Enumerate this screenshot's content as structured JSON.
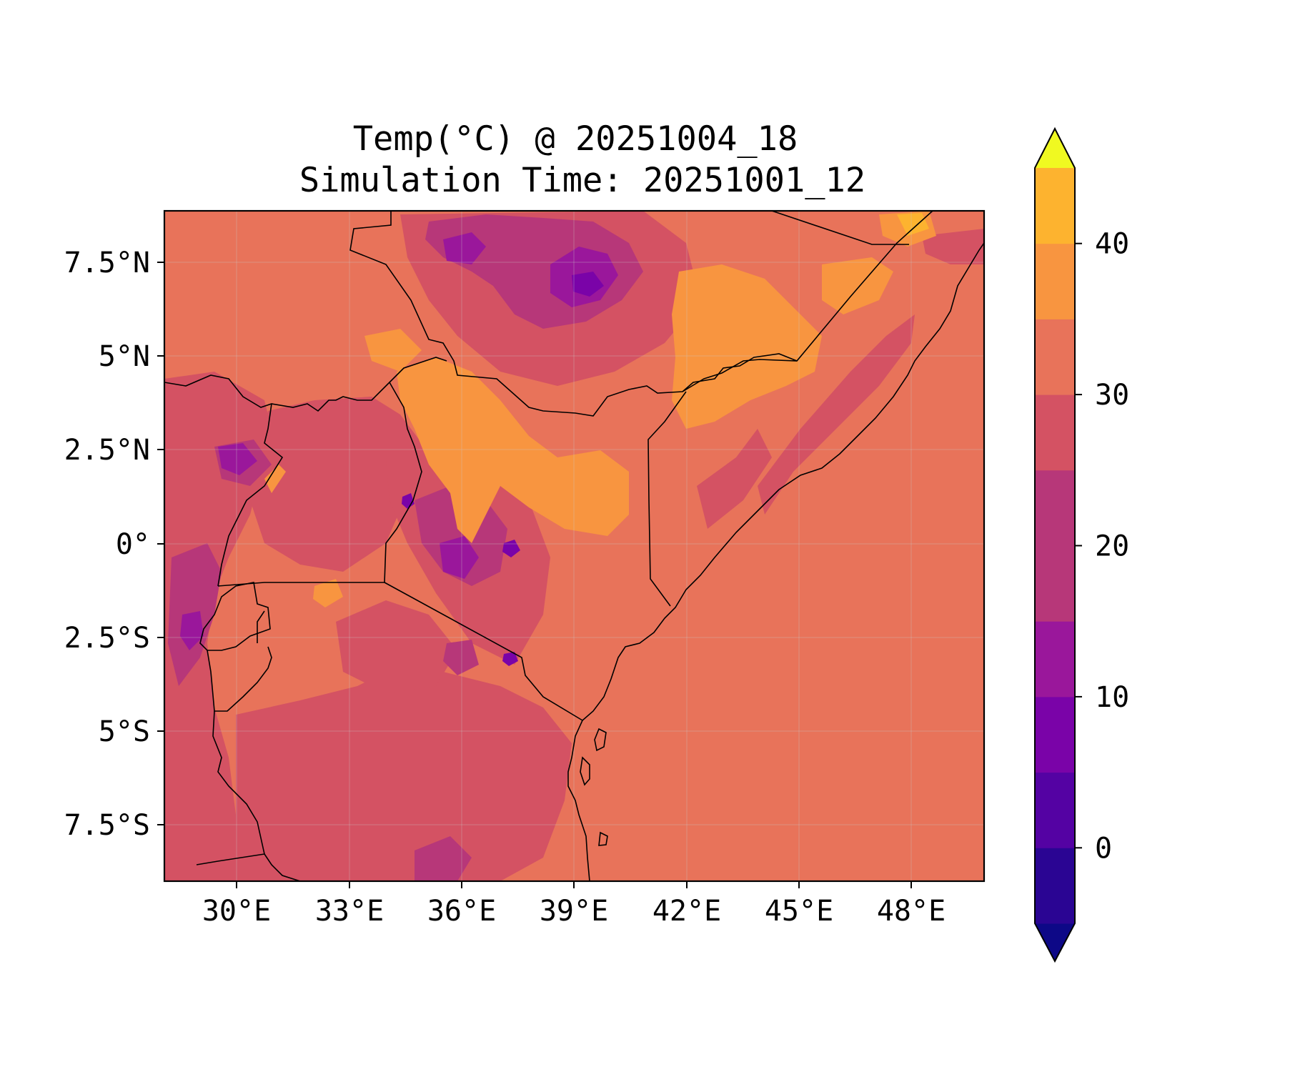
{
  "title_line1": "Temp(°C) @ 20251004_18",
  "title_line2": "Simulation Time: 20251001_12",
  "chart_data": {
    "type": "heatmap",
    "variable": "Temp(°C)",
    "valid_time": "20251004_18",
    "simulation_time": "20251001_12",
    "x_axis": {
      "ticks": [
        "30°E",
        "33°E",
        "36°E",
        "39°E",
        "42°E",
        "45°E",
        "48°E"
      ],
      "tick_values": [
        30,
        33,
        36,
        39,
        42,
        45,
        48
      ],
      "range": [
        28.1,
        50.0
      ]
    },
    "y_axis": {
      "ticks": [
        "7.5°N",
        "5°N",
        "2.5°N",
        "0°",
        "2.5°S",
        "5°S",
        "7.5°S"
      ],
      "tick_values": [
        7.5,
        5,
        2.5,
        0,
        -2.5,
        -5,
        -7.5
      ],
      "range": [
        -8.9,
        9.0
      ]
    },
    "colorbar": {
      "levels": [
        -5,
        0,
        5,
        10,
        15,
        20,
        25,
        30,
        35,
        40,
        45
      ],
      "tick_values": [
        0,
        10,
        20,
        30,
        40
      ],
      "tick_labels": [
        "0",
        "10",
        "20",
        "30",
        "40"
      ],
      "extend": "both",
      "colormap": "plasma",
      "colors": [
        "#0d0887",
        "#2a0593",
        "#5402a3",
        "#7a03a8",
        "#9a179b",
        "#b73779",
        "#d45263",
        "#e8735a",
        "#f89540",
        "#fdb32f",
        "#f0f921"
      ]
    },
    "grid": true,
    "coastlines": true,
    "borders": true
  }
}
